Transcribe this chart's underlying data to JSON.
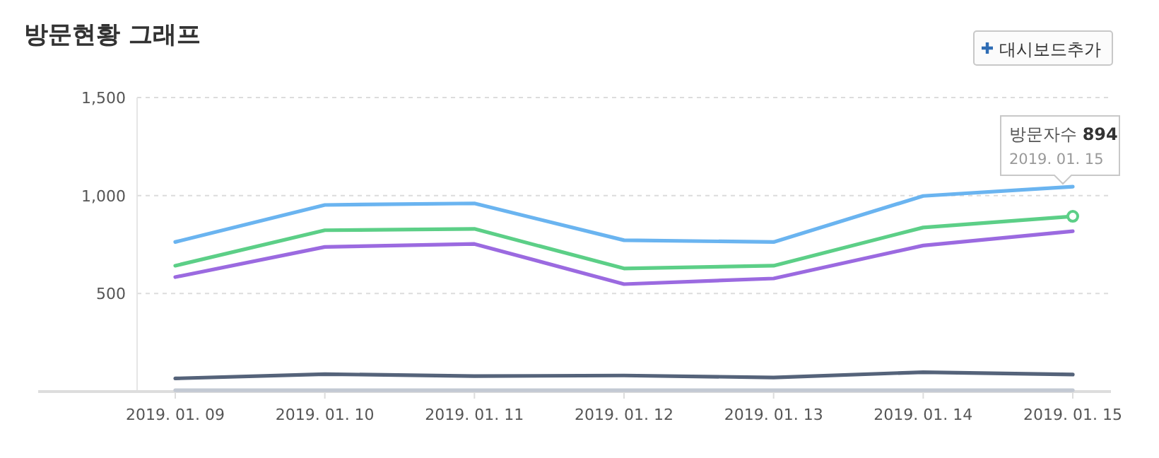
{
  "chart_data": {
    "type": "line",
    "title": "방문현황 그래프",
    "categories": [
      "2019. 01. 09",
      "2019. 01. 10",
      "2019. 01. 11",
      "2019. 01. 12",
      "2019. 01. 13",
      "2019. 01. 14",
      "2019. 01. 15"
    ],
    "series": [
      {
        "color": "#6ab4f0",
        "values": [
          763,
          952,
          960,
          772,
          763,
          998,
          1045
        ]
      },
      {
        "color": "#5ccf87",
        "values": [
          642,
          823,
          830,
          628,
          642,
          837,
          894
        ]
      },
      {
        "color": "#9b6ae0",
        "values": [
          584,
          738,
          753,
          548,
          577,
          745,
          818
        ]
      },
      {
        "color": "#55637a",
        "values": [
          67,
          89,
          79,
          82,
          72,
          99,
          87
        ]
      },
      {
        "color": "#c3c9d3",
        "values": [
          7,
          7,
          7,
          7,
          7,
          7,
          7
        ]
      }
    ],
    "ylim": [
      0,
      1500
    ],
    "yticks": [
      {
        "value": 500,
        "label": "500"
      },
      {
        "value": 1000,
        "label": "1,000"
      },
      {
        "value": 1500,
        "label": "1,500"
      }
    ],
    "grid": "y",
    "line_style": "solid",
    "annotations": [
      "대시보드추가",
      {
        "text": "방문자수 894\n2019. 01. 15",
        "x": "2019. 01. 15",
        "y": 894
      }
    ]
  }
}
